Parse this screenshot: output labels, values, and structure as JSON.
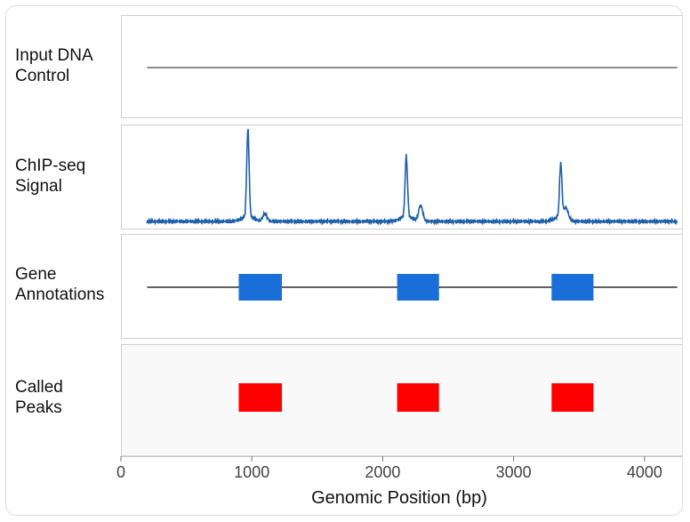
{
  "chart_data": {
    "type": "line",
    "xlabel": "Genomic Position (bp)",
    "xlim": [
      0,
      4300
    ],
    "xticks": [
      0,
      1000,
      2000,
      3000,
      4000
    ],
    "x_range_data": [
      200,
      4250
    ],
    "tracks": [
      {
        "label_line1": "Input DNA",
        "label_line2": "Control",
        "kind": "flat",
        "color": "#8c8c8c"
      },
      {
        "label_line1": "ChIP-seq",
        "label_line2": "Signal",
        "kind": "signal",
        "color": "#1f5fa8"
      },
      {
        "label_line1": "Gene",
        "label_line2": "Annotations",
        "kind": "genes",
        "color": "#1a6ed8"
      },
      {
        "label_line1": "Called",
        "label_line2": "Peaks",
        "kind": "peaks",
        "color": "#ff0000"
      }
    ],
    "chip_peaks": [
      {
        "center": 970,
        "height": 1.0
      },
      {
        "center": 1100,
        "height": 0.09
      },
      {
        "center": 2180,
        "height": 0.69
      },
      {
        "center": 2290,
        "height": 0.18
      },
      {
        "center": 3360,
        "height": 0.61
      },
      {
        "center": 3400,
        "height": 0.12
      }
    ],
    "gene_features": [
      {
        "start": 900,
        "end": 1230
      },
      {
        "start": 2110,
        "end": 2430
      },
      {
        "start": 3290,
        "end": 3610
      }
    ],
    "called_peaks": [
      {
        "start": 900,
        "end": 1230
      },
      {
        "start": 2110,
        "end": 2430
      },
      {
        "start": 3290,
        "end": 3610
      }
    ]
  }
}
